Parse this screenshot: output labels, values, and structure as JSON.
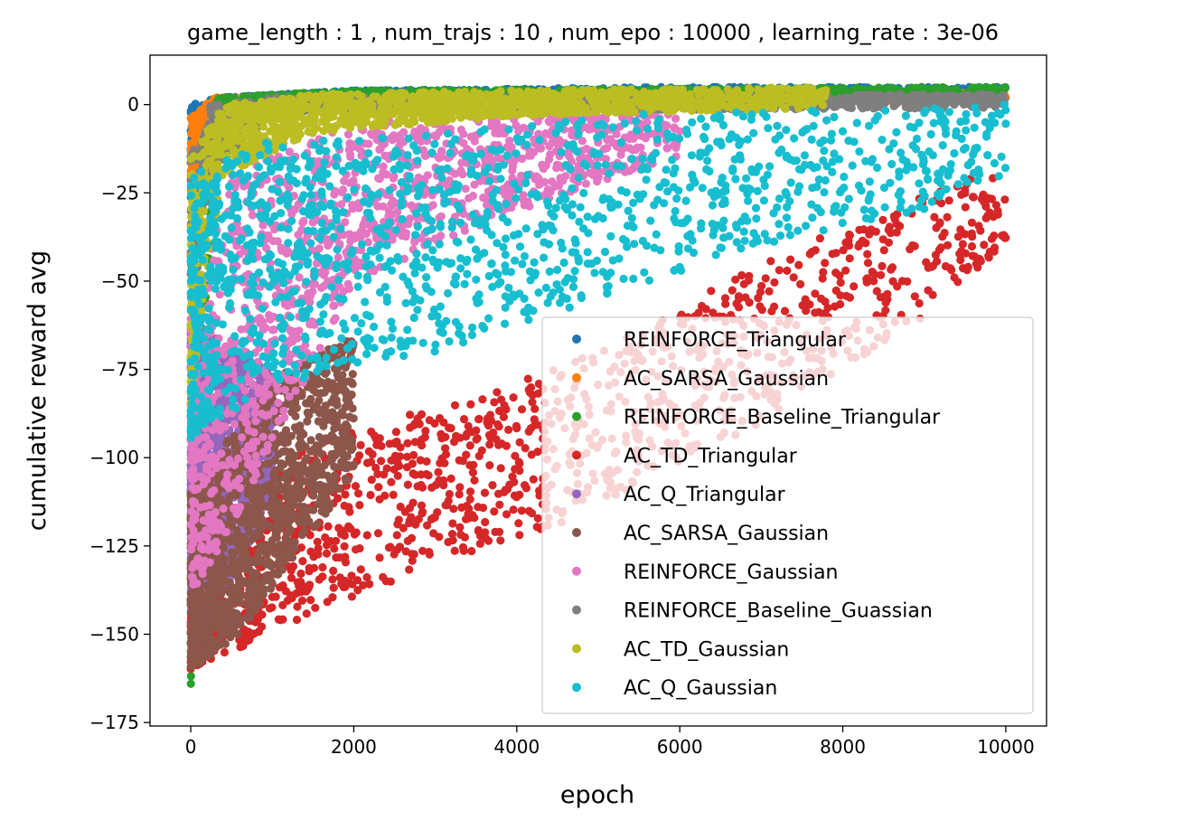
{
  "chart_data": {
    "type": "scatter",
    "title": "game_length : 1 , num_trajs : 10 , num_epo : 10000 , learning_rate : 3e-06",
    "xlabel": "epoch",
    "ylabel": "cumulative reward avg",
    "xlim": [
      -500,
      10500
    ],
    "ylim": [
      -176,
      14
    ],
    "xticks": [
      0,
      2000,
      4000,
      6000,
      8000,
      10000
    ],
    "xtick_labels": [
      "0",
      "2000",
      "4000",
      "6000",
      "8000",
      "10000"
    ],
    "yticks": [
      0,
      -25,
      -50,
      -75,
      -100,
      -125,
      -150,
      -175
    ],
    "ytick_labels": [
      "0",
      "−25",
      "−50",
      "−75",
      "−100",
      "−125",
      "−150",
      "−175"
    ],
    "grid": false,
    "legend_position": "lower-right",
    "series": [
      {
        "name": "REINFORCE_Triangular",
        "color": "#1f77b4",
        "band": [
          [
            0,
            -30,
            0
          ],
          [
            300,
            -2,
            2
          ],
          [
            2000,
            1,
            4
          ],
          [
            6000,
            2,
            5
          ],
          [
            10000,
            2,
            5
          ]
        ]
      },
      {
        "name": "AC_SARSA_Gaussian",
        "color": "#ff7f0e",
        "band": [
          [
            0,
            -25,
            -3
          ],
          [
            300,
            -2,
            2
          ],
          [
            2000,
            0,
            3
          ],
          [
            10000,
            1,
            4
          ]
        ]
      },
      {
        "name": "REINFORCE_Baseline_Triangular",
        "color": "#2ca02c",
        "band": [
          [
            0,
            -167,
            -140
          ],
          [
            300,
            -3,
            2
          ],
          [
            2000,
            1,
            4
          ],
          [
            10000,
            2,
            5
          ]
        ]
      },
      {
        "name": "AC_TD_Triangular",
        "color": "#d62728",
        "band": [
          [
            0,
            -160,
            -130
          ],
          [
            1500,
            -145,
            -95
          ],
          [
            3000,
            -130,
            -85
          ],
          [
            5000,
            -115,
            -70
          ],
          [
            7000,
            -90,
            -45
          ],
          [
            9000,
            -60,
            -25
          ],
          [
            10000,
            -40,
            -18
          ]
        ]
      },
      {
        "name": "AC_Q_Triangular",
        "color": "#9467bd",
        "band": [
          [
            0,
            -150,
            -60
          ],
          [
            500,
            -135,
            -70
          ],
          [
            1000,
            -110,
            -75
          ]
        ]
      },
      {
        "name": "AC_SARSA_Gaussian",
        "color": "#8c564b",
        "band": [
          [
            0,
            -160,
            -110
          ],
          [
            600,
            -150,
            -90
          ],
          [
            1200,
            -130,
            -75
          ],
          [
            2000,
            -105,
            -65
          ]
        ]
      },
      {
        "name": "REINFORCE_Gaussian",
        "color": "#e377c2",
        "band": [
          [
            0,
            -140,
            -60
          ],
          [
            500,
            -120,
            -20
          ],
          [
            2000,
            -50,
            -5
          ],
          [
            4000,
            -30,
            -2
          ],
          [
            6000,
            -15,
            0
          ]
        ]
      },
      {
        "name": "REINFORCE_Baseline_Guassian",
        "color": "#7f7f7f",
        "band": [
          [
            0,
            -60,
            -15
          ],
          [
            250,
            -20,
            0
          ],
          [
            1000,
            -2,
            2
          ],
          [
            10000,
            -1,
            3
          ]
        ]
      },
      {
        "name": "AC_TD_Gaussian",
        "color": "#bcbd22",
        "band": [
          [
            0,
            -85,
            -15
          ],
          [
            400,
            -20,
            0
          ],
          [
            1500,
            -8,
            3
          ],
          [
            4000,
            -3,
            4
          ],
          [
            7800,
            -1,
            5
          ]
        ]
      },
      {
        "name": "AC_Q_Gaussian",
        "color": "#17becf",
        "band": [
          [
            0,
            -95,
            -20
          ],
          [
            1000,
            -80,
            -10
          ],
          [
            3000,
            -70,
            -8
          ],
          [
            5000,
            -55,
            -3
          ],
          [
            7000,
            -40,
            -2
          ],
          [
            9000,
            -30,
            -1
          ],
          [
            10000,
            -20,
            0
          ]
        ]
      }
    ]
  }
}
